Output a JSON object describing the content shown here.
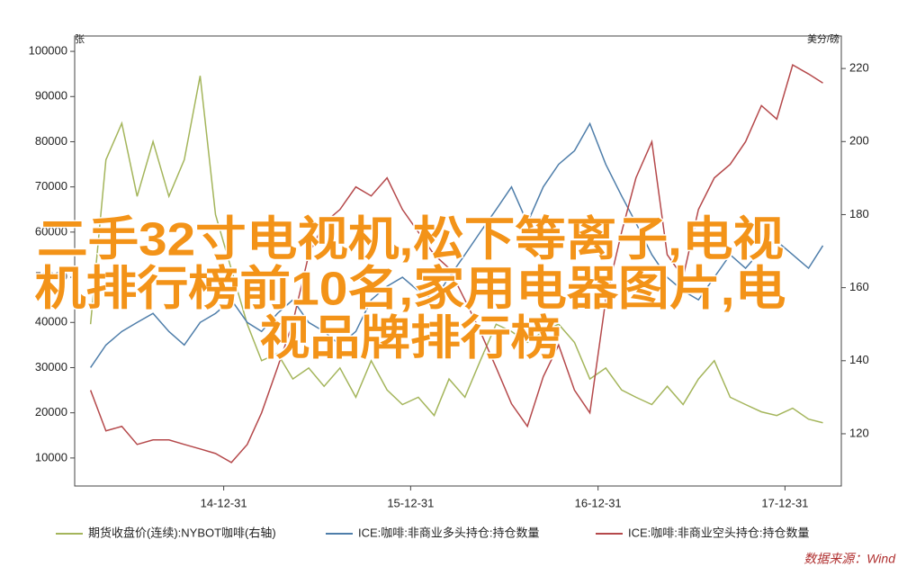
{
  "chart_data": {
    "type": "line",
    "overlay_lines": [
      "二手32寸电视机,松下等离子,电视",
      "机排行榜前10名,家用电器图片,电",
      "视品牌排行榜"
    ],
    "ylabel": "张",
    "y2label": "美分/磅",
    "source": "数据来源：Wind",
    "x": [
      "14-04-15",
      "14-05-15",
      "14-06-15",
      "14-07-15",
      "14-08-15",
      "14-09-15",
      "14-10-15",
      "14-11-15",
      "14-12-15",
      "15-01-15",
      "15-02-15",
      "15-03-15",
      "15-04-15",
      "15-05-15",
      "15-06-15",
      "15-07-15",
      "15-08-15",
      "15-09-15",
      "15-10-15",
      "15-11-15",
      "15-12-15",
      "16-01-15",
      "16-02-15",
      "16-03-15",
      "16-04-15",
      "16-05-15",
      "16-06-15",
      "16-07-15",
      "16-08-15",
      "16-09-15",
      "16-10-15",
      "16-11-15",
      "16-12-15",
      "17-01-15",
      "17-02-15",
      "17-03-15",
      "17-04-15",
      "17-05-15",
      "17-06-15",
      "17-07-15",
      "17-08-15",
      "17-09-15",
      "17-10-15",
      "17-11-15",
      "17-12-15",
      "18-01-15",
      "18-02-15",
      "18-03-15"
    ],
    "xlim": [
      "14-03-15",
      "18-04-20"
    ],
    "xticks": [
      "14-12-31",
      "15-12-31",
      "16-12-31",
      "17-12-31"
    ],
    "ylim": [
      3800,
      103400
    ],
    "yticks": [
      10000,
      20000,
      30000,
      40000,
      50000,
      60000,
      70000,
      80000,
      90000,
      100000
    ],
    "y2lim": [
      105.7,
      228.9
    ],
    "y2ticks": [
      120,
      140,
      160,
      180,
      200,
      220
    ],
    "series": [
      {
        "name": "期货收盘价(连续):NYBOT咖啡(右轴)",
        "color": "#a4b55b",
        "axis": "y2",
        "values": [
          150,
          195,
          205,
          185,
          200,
          185,
          195,
          218,
          180,
          165,
          150,
          140,
          142,
          135,
          138,
          133,
          138,
          130,
          140,
          132,
          128,
          130,
          125,
          135,
          130,
          140,
          150,
          148,
          145,
          148,
          150,
          145,
          135,
          138,
          132,
          130,
          128,
          133,
          128,
          135,
          140,
          130,
          128,
          126,
          125,
          127,
          124,
          123
        ]
      },
      {
        "name": "ICE:咖啡:非商业多头持仓:持仓数量",
        "color": "#4f7eaa",
        "values": [
          30000,
          35000,
          38000,
          40000,
          42000,
          38000,
          35000,
          40000,
          42000,
          45000,
          40000,
          38000,
          42000,
          45000,
          40000,
          38000,
          35000,
          38000,
          45000,
          48000,
          50000,
          47000,
          45000,
          50000,
          55000,
          60000,
          65000,
          70000,
          62000,
          70000,
          75000,
          78000,
          84000,
          75000,
          68000,
          62000,
          55000,
          50000,
          47000,
          45000,
          50000,
          55000,
          52000,
          56000,
          58000,
          55000,
          52000,
          57000
        ]
      },
      {
        "name": "ICE:咖啡:非商业空头持仓:持仓数量",
        "color": "#b5494b",
        "values": [
          25000,
          16000,
          17000,
          13000,
          14000,
          14000,
          13000,
          12000,
          11000,
          9000,
          13000,
          20000,
          30000,
          40000,
          55000,
          62000,
          65000,
          70000,
          68000,
          72000,
          65000,
          60000,
          55000,
          52000,
          45000,
          38000,
          30000,
          22000,
          17000,
          28000,
          35000,
          25000,
          20000,
          45000,
          60000,
          72000,
          80000,
          55000,
          50000,
          65000,
          72000,
          75000,
          80000,
          88000,
          85000,
          97000,
          95000,
          93000
        ]
      }
    ]
  }
}
